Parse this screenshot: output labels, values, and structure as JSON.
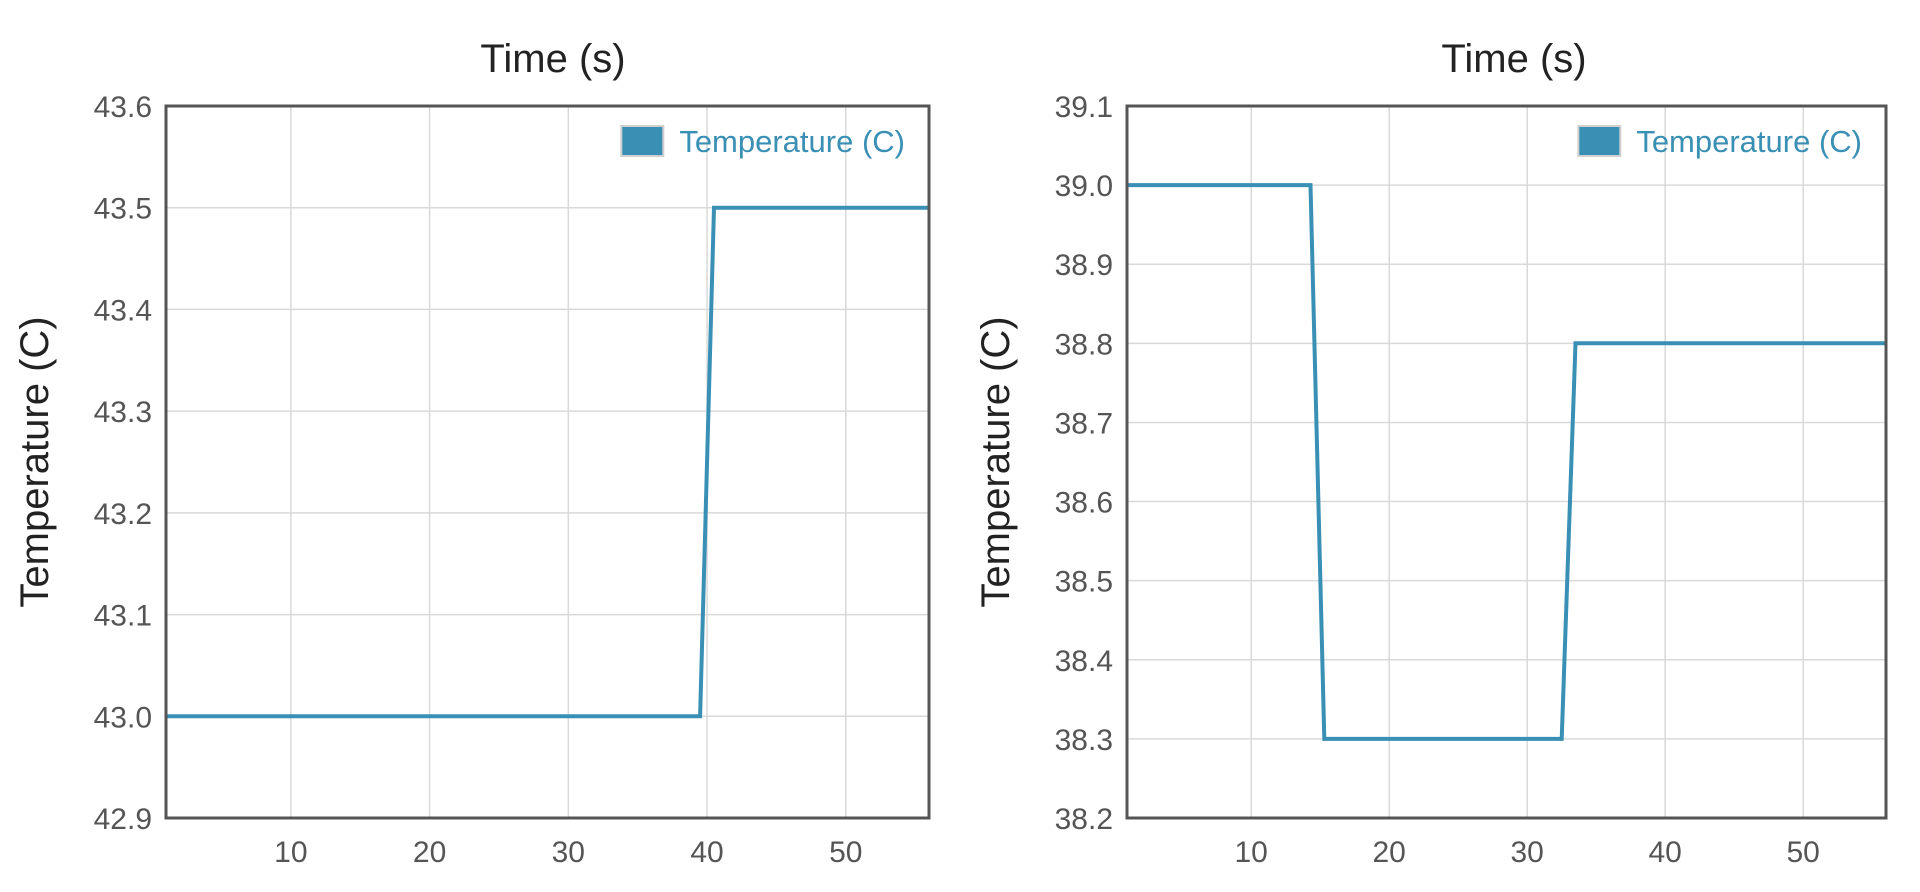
{
  "chart_data": [
    {
      "type": "line",
      "title": "Time (s)",
      "xlabel": "",
      "ylabel": "Temperature (C)",
      "xlim": [
        1,
        56
      ],
      "ylim": [
        42.9,
        43.6
      ],
      "x_ticks": [
        10,
        20,
        30,
        40,
        50
      ],
      "y_ticks": [
        "42.9",
        "43.0",
        "43.1",
        "43.2",
        "43.3",
        "43.4",
        "43.5",
        "43.6"
      ],
      "grid": true,
      "legend": "top-right",
      "series": [
        {
          "name": "Temperature (C)",
          "color": "#3a8fb4",
          "x": [
            1,
            39.5,
            40.5,
            56
          ],
          "y": [
            43.0,
            43.0,
            43.5,
            43.5
          ]
        }
      ]
    },
    {
      "type": "line",
      "title": "Time (s)",
      "xlabel": "",
      "ylabel": "Temperature (C)",
      "xlim": [
        1,
        56
      ],
      "ylim": [
        38.2,
        39.1
      ],
      "x_ticks": [
        10,
        20,
        30,
        40,
        50
      ],
      "y_ticks": [
        "38.2",
        "38.3",
        "38.4",
        "38.5",
        "38.6",
        "38.7",
        "38.8",
        "38.9",
        "39.0",
        "39.1"
      ],
      "grid": true,
      "legend": "top-right",
      "series": [
        {
          "name": "Temperature (C)",
          "color": "#3a8fb4",
          "x": [
            1,
            14.3,
            15.3,
            32.5,
            33.5,
            56
          ],
          "y": [
            39.0,
            39.0,
            38.3,
            38.3,
            38.8,
            38.8
          ]
        }
      ]
    }
  ]
}
